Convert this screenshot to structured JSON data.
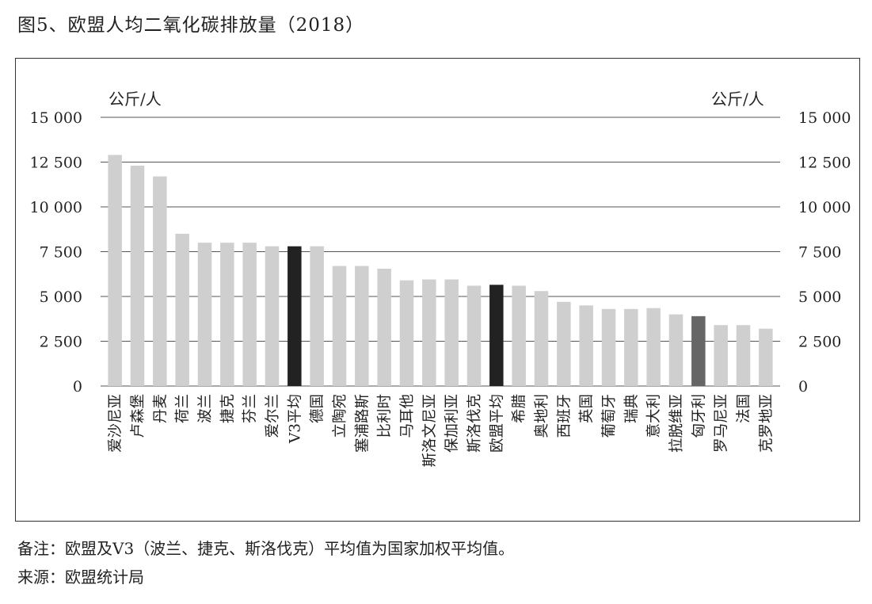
{
  "title": "图5、欧盟人均二氧化碳排放量（2018）",
  "notes": {
    "remark": "备注：欧盟及V3（波兰、捷克、斯洛伐克）平均值为国家加权平均值。",
    "source": "来源：欧盟统计局"
  },
  "colors": {
    "default": "#cfcfcf",
    "highlight_black": "#222222",
    "highlight_gray": "#666666"
  },
  "chart_data": {
    "type": "bar",
    "title": "",
    "unit_left": "公斤/人",
    "unit_right": "公斤/人",
    "ylim": [
      0,
      15000
    ],
    "yticks": [
      "15 000",
      "12 500",
      "10 000",
      "7 500",
      "5 000",
      "2 500",
      "0"
    ],
    "ytick_values": [
      15000,
      12500,
      10000,
      7500,
      5000,
      2500,
      0
    ],
    "grid": true,
    "categories": [
      "爱沙尼亚",
      "卢森堡",
      "丹麦",
      "荷兰",
      "波兰",
      "捷克",
      "芬兰",
      "爱尔兰",
      "V3平均",
      "德国",
      "立陶宛",
      "塞浦路斯",
      "比利时",
      "马耳他",
      "斯洛文尼亚",
      "保加利亚",
      "斯洛伐克",
      "欧盟平均",
      "希腊",
      "奥地利",
      "西班牙",
      "英国",
      "葡萄牙",
      "瑞典",
      "意大利",
      "拉脱维亚",
      "匈牙利",
      "罗马尼亚",
      "法国",
      "克罗地亚"
    ],
    "values": [
      12900,
      12300,
      11700,
      8500,
      8000,
      8000,
      8000,
      7800,
      7800,
      7800,
      6700,
      6700,
      6550,
      5900,
      5950,
      5950,
      5600,
      5650,
      5600,
      5300,
      4700,
      4500,
      4300,
      4300,
      4350,
      4000,
      3900,
      3400,
      3400,
      3200
    ],
    "bar_colors": [
      "default",
      "default",
      "default",
      "default",
      "default",
      "default",
      "default",
      "default",
      "highlight_black",
      "default",
      "default",
      "default",
      "default",
      "default",
      "default",
      "default",
      "default",
      "highlight_black",
      "default",
      "default",
      "default",
      "default",
      "default",
      "default",
      "default",
      "default",
      "highlight_gray",
      "default",
      "default",
      "default"
    ]
  }
}
